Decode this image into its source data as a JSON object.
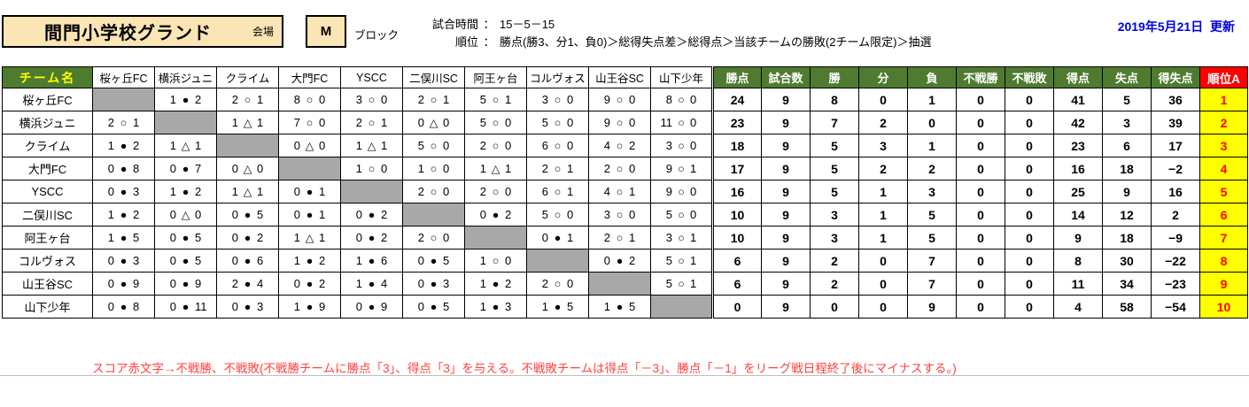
{
  "header": {
    "venue": "間門小学校グランド",
    "venue_label": "会場",
    "block": "M",
    "block_label": "ブロック",
    "colon": "：",
    "match_time_label": "試合時間",
    "match_time": "15－5－15",
    "rank_rule_label": "順位",
    "rank_rule": "勝点(勝3、分1、負0)＞総得失点差＞総得点＞当該チームの勝敗(2チーム限定)＞抽選",
    "updated": "2019年5月21日  更新"
  },
  "table": {
    "team_col_header": "チーム名",
    "opponents": [
      "桜ヶ丘FC",
      "横浜ジュニ",
      "クライム",
      "大門FC",
      "YSCC",
      "二俣川SC",
      "阿王ヶ台",
      "コルヴォス",
      "山王谷SC",
      "山下少年"
    ],
    "stat_headers": [
      "勝点",
      "試合数",
      "勝",
      "分",
      "負",
      "不戦勝",
      "不戦敗",
      "得点",
      "失点",
      "得失点"
    ],
    "rank_header": "順位A",
    "symbols": {
      "win": "○",
      "loss": "●",
      "draw": "△"
    },
    "colors": {
      "header_green": "#4F7B30",
      "rank_red": "#FF0000",
      "rank_yellow": "#FFFF00",
      "diagonal_gray": "#A8A8A8",
      "venue_tan": "#FBE5B4",
      "date_blue": "#0000E0",
      "note_red": "#FF4040"
    },
    "rows": [
      {
        "team": "桜ヶ丘FC",
        "results": [
          null,
          [
            "1",
            "●",
            "2"
          ],
          [
            "2",
            "○",
            "1"
          ],
          [
            "8",
            "○",
            "0"
          ],
          [
            "3",
            "○",
            "0"
          ],
          [
            "2",
            "○",
            "1"
          ],
          [
            "5",
            "○",
            "1"
          ],
          [
            "3",
            "○",
            "0"
          ],
          [
            "9",
            "○",
            "0"
          ],
          [
            "8",
            "○",
            "0"
          ]
        ],
        "stats": [
          "24",
          "9",
          "8",
          "0",
          "1",
          "0",
          "0",
          "41",
          "5",
          "36"
        ],
        "rank": "1"
      },
      {
        "team": "横浜ジュニ",
        "results": [
          [
            "2",
            "○",
            "1"
          ],
          null,
          [
            "1",
            "△",
            "1"
          ],
          [
            "7",
            "○",
            "0"
          ],
          [
            "2",
            "○",
            "1"
          ],
          [
            "0",
            "△",
            "0"
          ],
          [
            "5",
            "○",
            "0"
          ],
          [
            "5",
            "○",
            "0"
          ],
          [
            "9",
            "○",
            "0"
          ],
          [
            "11",
            "○",
            "0"
          ]
        ],
        "stats": [
          "23",
          "9",
          "7",
          "2",
          "0",
          "0",
          "0",
          "42",
          "3",
          "39"
        ],
        "rank": "2"
      },
      {
        "team": "クライム",
        "results": [
          [
            "1",
            "●",
            "2"
          ],
          [
            "1",
            "△",
            "1"
          ],
          null,
          [
            "0",
            "△",
            "0"
          ],
          [
            "1",
            "△",
            "1"
          ],
          [
            "5",
            "○",
            "0"
          ],
          [
            "2",
            "○",
            "0"
          ],
          [
            "6",
            "○",
            "0"
          ],
          [
            "4",
            "○",
            "2"
          ],
          [
            "3",
            "○",
            "0"
          ]
        ],
        "stats": [
          "18",
          "9",
          "5",
          "3",
          "1",
          "0",
          "0",
          "23",
          "6",
          "17"
        ],
        "rank": "3"
      },
      {
        "team": "大門FC",
        "results": [
          [
            "0",
            "●",
            "8"
          ],
          [
            "0",
            "●",
            "7"
          ],
          [
            "0",
            "△",
            "0"
          ],
          null,
          [
            "1",
            "○",
            "0"
          ],
          [
            "1",
            "○",
            "0"
          ],
          [
            "1",
            "△",
            "1"
          ],
          [
            "2",
            "○",
            "1"
          ],
          [
            "2",
            "○",
            "0"
          ],
          [
            "9",
            "○",
            "1"
          ]
        ],
        "stats": [
          "17",
          "9",
          "5",
          "2",
          "2",
          "0",
          "0",
          "16",
          "18",
          "−2"
        ],
        "rank": "4"
      },
      {
        "team": "YSCC",
        "results": [
          [
            "0",
            "●",
            "3"
          ],
          [
            "1",
            "●",
            "2"
          ],
          [
            "1",
            "△",
            "1"
          ],
          [
            "0",
            "●",
            "1"
          ],
          null,
          [
            "2",
            "○",
            "0"
          ],
          [
            "2",
            "○",
            "0"
          ],
          [
            "6",
            "○",
            "1"
          ],
          [
            "4",
            "○",
            "1"
          ],
          [
            "9",
            "○",
            "0"
          ]
        ],
        "stats": [
          "16",
          "9",
          "5",
          "1",
          "3",
          "0",
          "0",
          "25",
          "9",
          "16"
        ],
        "rank": "5"
      },
      {
        "team": "二俣川SC",
        "results": [
          [
            "1",
            "●",
            "2"
          ],
          [
            "0",
            "△",
            "0"
          ],
          [
            "0",
            "●",
            "5"
          ],
          [
            "0",
            "●",
            "1"
          ],
          [
            "0",
            "●",
            "2"
          ],
          null,
          [
            "0",
            "●",
            "2"
          ],
          [
            "5",
            "○",
            "0"
          ],
          [
            "3",
            "○",
            "0"
          ],
          [
            "5",
            "○",
            "0"
          ]
        ],
        "stats": [
          "10",
          "9",
          "3",
          "1",
          "5",
          "0",
          "0",
          "14",
          "12",
          "2"
        ],
        "rank": "6"
      },
      {
        "team": "阿王ヶ台",
        "results": [
          [
            "1",
            "●",
            "5"
          ],
          [
            "0",
            "●",
            "5"
          ],
          [
            "0",
            "●",
            "2"
          ],
          [
            "1",
            "△",
            "1"
          ],
          [
            "0",
            "●",
            "2"
          ],
          [
            "2",
            "○",
            "0"
          ],
          null,
          [
            "0",
            "●",
            "1"
          ],
          [
            "2",
            "○",
            "1"
          ],
          [
            "3",
            "○",
            "1"
          ]
        ],
        "stats": [
          "10",
          "9",
          "3",
          "1",
          "5",
          "0",
          "0",
          "9",
          "18",
          "−9"
        ],
        "rank": "7"
      },
      {
        "team": "コルヴォス",
        "results": [
          [
            "0",
            "●",
            "3"
          ],
          [
            "0",
            "●",
            "5"
          ],
          [
            "0",
            "●",
            "6"
          ],
          [
            "1",
            "●",
            "2"
          ],
          [
            "1",
            "●",
            "6"
          ],
          [
            "0",
            "●",
            "5"
          ],
          [
            "1",
            "○",
            "0"
          ],
          null,
          [
            "0",
            "●",
            "2"
          ],
          [
            "5",
            "○",
            "1"
          ]
        ],
        "stats": [
          "6",
          "9",
          "2",
          "0",
          "7",
          "0",
          "0",
          "8",
          "30",
          "−22"
        ],
        "rank": "8"
      },
      {
        "team": "山王谷SC",
        "results": [
          [
            "0",
            "●",
            "9"
          ],
          [
            "0",
            "●",
            "9"
          ],
          [
            "2",
            "●",
            "4"
          ],
          [
            "0",
            "●",
            "2"
          ],
          [
            "1",
            "●",
            "4"
          ],
          [
            "0",
            "●",
            "3"
          ],
          [
            "1",
            "●",
            "2"
          ],
          [
            "2",
            "○",
            "0"
          ],
          null,
          [
            "5",
            "○",
            "1"
          ]
        ],
        "stats": [
          "6",
          "9",
          "2",
          "0",
          "7",
          "0",
          "0",
          "11",
          "34",
          "−23"
        ],
        "rank": "9"
      },
      {
        "team": "山下少年",
        "results": [
          [
            "0",
            "●",
            "8"
          ],
          [
            "0",
            "●",
            "11"
          ],
          [
            "0",
            "●",
            "3"
          ],
          [
            "1",
            "●",
            "9"
          ],
          [
            "0",
            "●",
            "9"
          ],
          [
            "0",
            "●",
            "5"
          ],
          [
            "1",
            "●",
            "3"
          ],
          [
            "1",
            "●",
            "5"
          ],
          [
            "1",
            "●",
            "5"
          ],
          null
        ],
        "stats": [
          "0",
          "9",
          "0",
          "0",
          "9",
          "0",
          "0",
          "4",
          "58",
          "−54"
        ],
        "rank": "10"
      }
    ]
  },
  "footnote": "スコア赤文字→不戦勝、不戦敗(不戦勝チームに勝点「3」、得点「3」を与える。不戦敗チームは得点「－3」、勝点「－1」をリーグ戦日程終了後にマイナスする。)"
}
